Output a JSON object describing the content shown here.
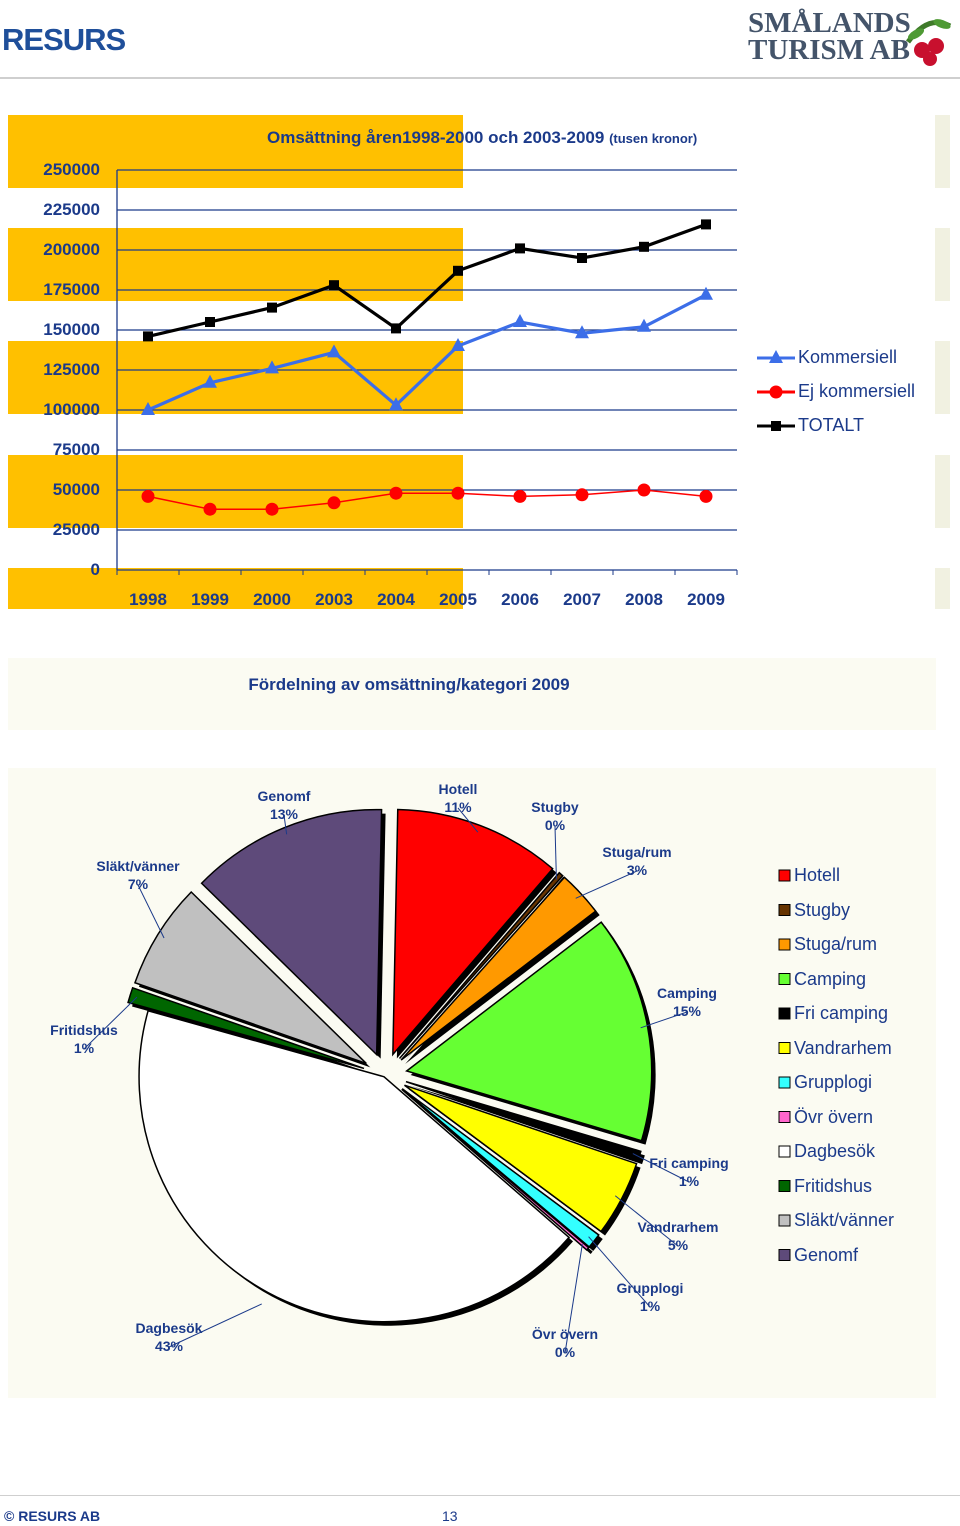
{
  "header": {
    "left_logo": "RESURS",
    "right_logo_line1": "SMÅLANDS",
    "right_logo_line2": "TURISM AB"
  },
  "colors": {
    "panel": "#ffc000",
    "axis_text": "#1b3a8a",
    "kommersiell": "#3c6ee8",
    "ej_kommersiell": "#ff0000",
    "totalt": "#000000"
  },
  "chart_data": [
    {
      "type": "line",
      "title": "Omsättning åren1998-2000 och 2003-2009",
      "subtitle": "(tusen kronor)",
      "categories": [
        "1998",
        "1999",
        "2000",
        "2003",
        "2004",
        "2005",
        "2006",
        "2007",
        "2008",
        "2009"
      ],
      "y_ticks": [
        "0",
        "25000",
        "50000",
        "75000",
        "100000",
        "125000",
        "150000",
        "175000",
        "200000",
        "225000",
        "250000"
      ],
      "ylim": [
        0,
        250000
      ],
      "legend_position": "right",
      "grid": true,
      "series": [
        {
          "name": "Kommersiell",
          "marker": "triangle",
          "color": "#3c6ee8",
          "values": [
            100000,
            117000,
            126000,
            136000,
            103000,
            140000,
            155000,
            148000,
            152000,
            172000
          ]
        },
        {
          "name": "Ej kommersiell",
          "marker": "circle",
          "color": "#ff0000",
          "values": [
            46000,
            38000,
            38000,
            42000,
            48000,
            48000,
            46000,
            47000,
            50000,
            46000
          ]
        },
        {
          "name": "TOTALT",
          "marker": "square",
          "color": "#000000",
          "values": [
            146000,
            155000,
            164000,
            178000,
            151000,
            187000,
            201000,
            195000,
            202000,
            216000
          ]
        }
      ]
    },
    {
      "type": "pie",
      "title": "Fördelning av omsättning/kategori 2009",
      "legend_position": "right",
      "slices": [
        {
          "name": "Hotell",
          "label": "Hotell",
          "percent_label": "11%",
          "value": 11,
          "color": "#ff0000"
        },
        {
          "name": "Stugby",
          "label": "Stugby",
          "percent_label": "0%",
          "value": 0.3,
          "color": "#663300"
        },
        {
          "name": "Stuga/rum",
          "label": "Stuga/rum",
          "percent_label": "3%",
          "value": 3,
          "color": "#ff9900"
        },
        {
          "name": "Camping",
          "label": "Camping",
          "percent_label": "15%",
          "value": 15,
          "color": "#66ff33"
        },
        {
          "name": "Fri camping",
          "label": "Fri camping",
          "percent_label": "1%",
          "value": 0.6,
          "color": "#000000"
        },
        {
          "name": "Vandrarhem",
          "label": "Vandrarhem",
          "percent_label": "5%",
          "value": 5,
          "color": "#ffff00"
        },
        {
          "name": "Grupplogi",
          "label": "Grupplogi",
          "percent_label": "1%",
          "value": 1,
          "color": "#33ffff"
        },
        {
          "name": "Övr övern",
          "label": "Övr övern",
          "percent_label": "0%",
          "value": 0.2,
          "color": "#ff66cc"
        },
        {
          "name": "Dagbesök",
          "label": "Dagbesök",
          "percent_label": "43%",
          "value": 43,
          "color": "#ffffff"
        },
        {
          "name": "Fritidshus",
          "label": "Fritidshus",
          "percent_label": "1%",
          "value": 1,
          "color": "#006600"
        },
        {
          "name": "Släkt/vänner",
          "label": "Släkt/vänner",
          "percent_label": "7%",
          "value": 7,
          "color": "#c0c0c0"
        },
        {
          "name": "Genomf",
          "label": "Genomf",
          "percent_label": "13%",
          "value": 13,
          "color": "#5e4a7a"
        }
      ]
    }
  ],
  "footer": {
    "copyright": "© RESURS AB",
    "page_number": "13"
  }
}
